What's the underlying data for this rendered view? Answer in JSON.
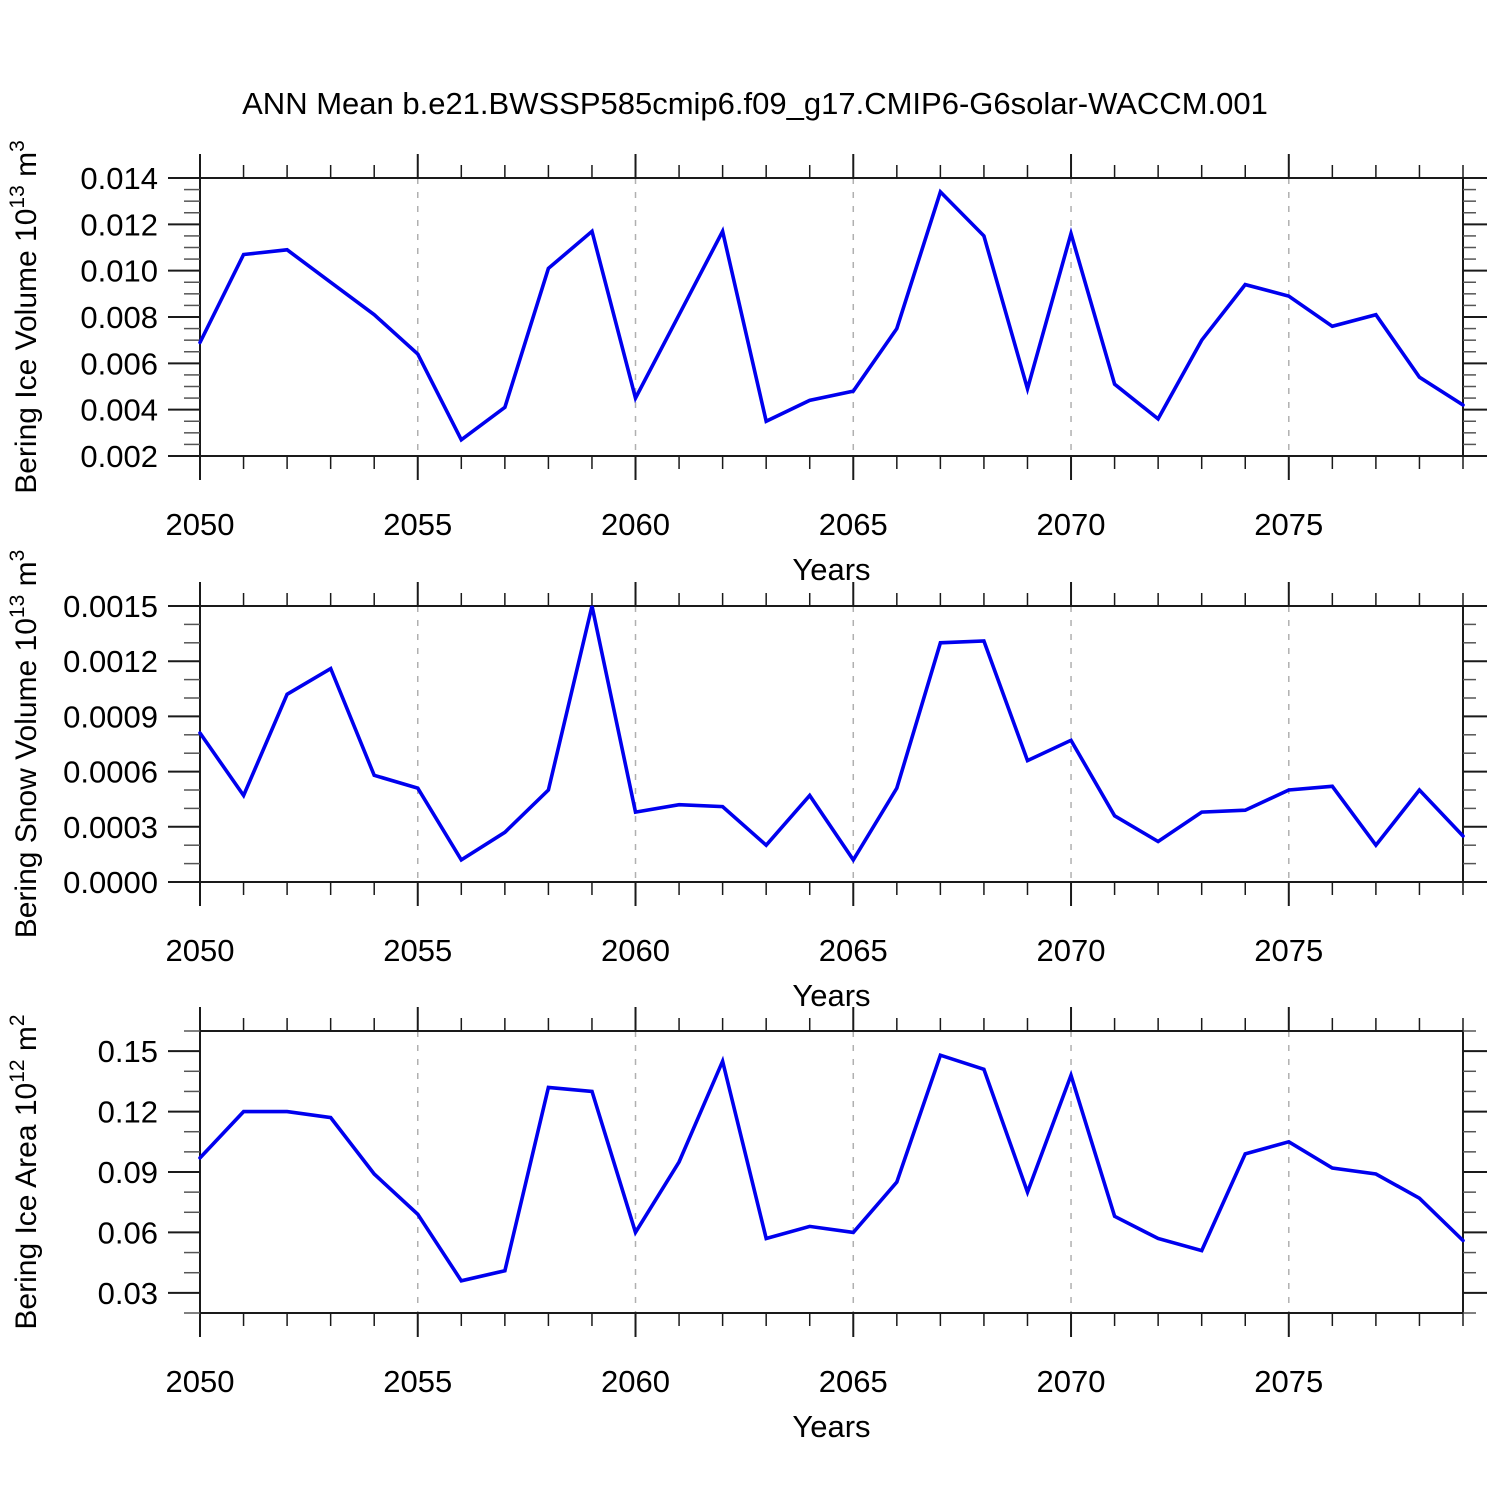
{
  "title": "ANN Mean b.e21.BWSSP585cmip6.f09_g17.CMIP6-G6solar-WACCM.001",
  "colors": {
    "line": "#0000ee",
    "axis": "#1a1a1a",
    "minor_tick": "#555555",
    "gridline": "#b0b0b0",
    "text": "#000000",
    "background": "#ffffff"
  },
  "x_axis": {
    "label": "Years",
    "range": [
      2050,
      2079
    ],
    "major_ticks": [
      2050,
      2055,
      2060,
      2065,
      2070,
      2075
    ],
    "major_tick_labels": [
      "2050",
      "2055",
      "2060",
      "2065",
      "2070",
      "2075"
    ],
    "minor_step": 1,
    "gridlines_at": [
      2055,
      2060,
      2065,
      2070,
      2075
    ]
  },
  "chart_data": [
    {
      "type": "line",
      "name": "bering-ice-volume",
      "ylabel_text": "Bering Ice Volume 10^13 m^3",
      "ylabel_parts": [
        {
          "t": "Bering Ice Volume 10"
        },
        {
          "t": "13",
          "sup": true
        },
        {
          "t": " m"
        },
        {
          "t": "3",
          "sup": true
        }
      ],
      "xlabel": "Years",
      "ylim": [
        0.002,
        0.014
      ],
      "yticks": [
        0.002,
        0.004,
        0.006,
        0.008,
        0.01,
        0.012,
        0.014
      ],
      "ytick_labels": [
        "0.002",
        "0.004",
        "0.006",
        "0.008",
        "0.010",
        "0.012",
        "0.014"
      ],
      "y_minor_step": 0.0005,
      "x": [
        2050,
        2051,
        2052,
        2053,
        2054,
        2055,
        2056,
        2057,
        2058,
        2059,
        2060,
        2061,
        2062,
        2063,
        2064,
        2065,
        2066,
        2067,
        2068,
        2069,
        2070,
        2071,
        2072,
        2073,
        2074,
        2075,
        2076,
        2077,
        2078,
        2079
      ],
      "values": [
        0.0069,
        0.0107,
        0.0109,
        0.0095,
        0.0081,
        0.0064,
        0.0027,
        0.0041,
        0.0101,
        0.0117,
        0.0045,
        0.0081,
        0.0117,
        0.0035,
        0.0044,
        0.0048,
        0.0075,
        0.0134,
        0.0115,
        0.0049,
        0.0116,
        0.0051,
        0.0036,
        0.007,
        0.0094,
        0.0089,
        0.0076,
        0.0081,
        0.0054,
        0.0042
      ]
    },
    {
      "type": "line",
      "name": "bering-snow-volume",
      "ylabel_text": "Bering Snow Volume 10^13 m^3",
      "ylabel_parts": [
        {
          "t": "Bering Snow Volume 10"
        },
        {
          "t": "13",
          "sup": true
        },
        {
          "t": " m"
        },
        {
          "t": "3",
          "sup": true
        }
      ],
      "xlabel": "Years",
      "ylim": [
        0.0,
        0.0015
      ],
      "yticks": [
        0.0,
        0.0003,
        0.0006,
        0.0009,
        0.0012,
        0.0015
      ],
      "ytick_labels": [
        "0.0000",
        "0.0003",
        "0.0006",
        "0.0009",
        "0.0012",
        "0.0015"
      ],
      "y_minor_step": 0.0001,
      "x": [
        2050,
        2051,
        2052,
        2053,
        2054,
        2055,
        2056,
        2057,
        2058,
        2059,
        2060,
        2061,
        2062,
        2063,
        2064,
        2065,
        2066,
        2067,
        2068,
        2069,
        2070,
        2071,
        2072,
        2073,
        2074,
        2075,
        2076,
        2077,
        2078,
        2079
      ],
      "values": [
        0.00081,
        0.00047,
        0.00102,
        0.00116,
        0.00058,
        0.00051,
        0.00012,
        0.00027,
        0.0005,
        0.0015,
        0.00038,
        0.00042,
        0.00041,
        0.0002,
        0.00047,
        0.00012,
        0.00051,
        0.0013,
        0.00131,
        0.00066,
        0.00077,
        0.00036,
        0.00022,
        0.00038,
        0.00039,
        0.0005,
        0.00052,
        0.0002,
        0.0005,
        0.00025
      ]
    },
    {
      "type": "line",
      "name": "bering-ice-area",
      "ylabel_text": "Bering Ice Area 10^12 m^2",
      "ylabel_parts": [
        {
          "t": "Bering Ice Area 10"
        },
        {
          "t": "12",
          "sup": true
        },
        {
          "t": " m"
        },
        {
          "t": "2",
          "sup": true
        }
      ],
      "xlabel": "Years",
      "ylim": [
        0.02,
        0.16
      ],
      "yticks": [
        0.03,
        0.06,
        0.09,
        0.12,
        0.15
      ],
      "ytick_labels": [
        "0.03",
        "0.06",
        "0.09",
        "0.12",
        "0.15"
      ],
      "y_minor_step": 0.01,
      "x": [
        2050,
        2051,
        2052,
        2053,
        2054,
        2055,
        2056,
        2057,
        2058,
        2059,
        2060,
        2061,
        2062,
        2063,
        2064,
        2065,
        2066,
        2067,
        2068,
        2069,
        2070,
        2071,
        2072,
        2073,
        2074,
        2075,
        2076,
        2077,
        2078,
        2079
      ],
      "values": [
        0.097,
        0.12,
        0.12,
        0.117,
        0.089,
        0.069,
        0.036,
        0.041,
        0.132,
        0.13,
        0.06,
        0.095,
        0.145,
        0.057,
        0.063,
        0.06,
        0.085,
        0.148,
        0.141,
        0.08,
        0.138,
        0.068,
        0.057,
        0.051,
        0.099,
        0.105,
        0.092,
        0.089,
        0.077,
        0.056
      ]
    }
  ]
}
